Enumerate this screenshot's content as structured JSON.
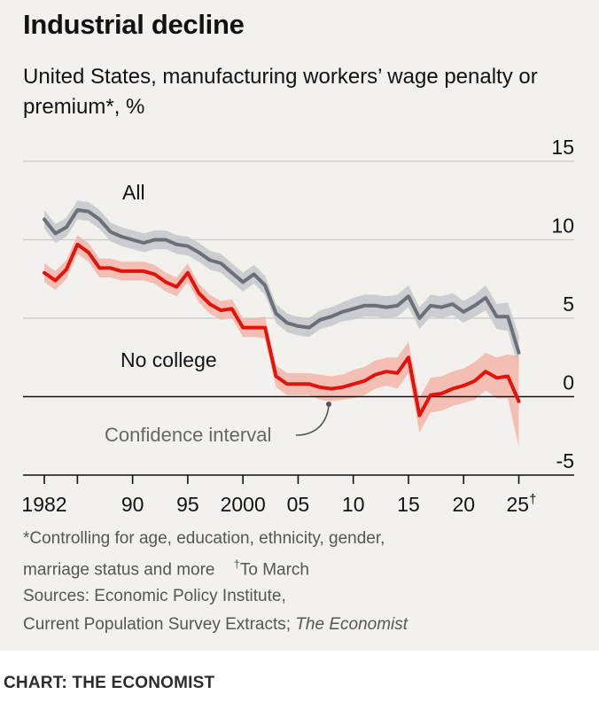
{
  "title": "Industrial decline",
  "subtitle": "United States, manufacturing workers’ wage penalty or premium*, %",
  "credit": "CHART: THE ECONOMIST",
  "footnotes": {
    "line1": "*Controlling for age, education, ethnicity, gender,",
    "line2": "marriage status and more",
    "dagger_mark": "†",
    "dagger_text": "To March",
    "line3": "Sources: Economic Policy Institute,",
    "line4_prefix": "Current Population Survey Extracts; ",
    "line4_italic": "The Economist"
  },
  "colors": {
    "all": "#6c6f78",
    "all_band": "#c8c9cc",
    "no_college": "#e3120b",
    "no_college_band": "#f3b9ad",
    "zero_line": "#121212",
    "grid": "#c9c9c9"
  },
  "chart_data": {
    "type": "line",
    "xlim": [
      1982,
      2025.2
    ],
    "ylim": [
      -5,
      15
    ],
    "yticks": [
      15,
      10,
      5,
      0,
      -5
    ],
    "ytick_labels": [
      "15",
      "10",
      "5",
      "0",
      "-5"
    ],
    "xticks": [
      1982,
      1985,
      1990,
      1995,
      2000,
      2005,
      2010,
      2015,
      2020,
      2025
    ],
    "xtick_labels": [
      {
        "x": 1982,
        "label": "1982"
      },
      {
        "x": 1990,
        "label": "90"
      },
      {
        "x": 1995,
        "label": "95"
      },
      {
        "x": 2000,
        "label": "2000"
      },
      {
        "x": 2005,
        "label": "05"
      },
      {
        "x": 2010,
        "label": "10"
      },
      {
        "x": 2015,
        "label": "15"
      },
      {
        "x": 2020,
        "label": "20"
      },
      {
        "x": 2025,
        "label": "25",
        "suffix": "†"
      }
    ],
    "grid": true,
    "legend": "inline labels",
    "annotation": "Confidence interval",
    "x": [
      1982,
      1983,
      1984,
      1985,
      1986,
      1987,
      1988,
      1989,
      1990,
      1991,
      1992,
      1993,
      1994,
      1995,
      1996,
      1997,
      1998,
      1999,
      2000,
      2001,
      2002,
      2003,
      2004,
      2005,
      2006,
      2007,
      2008,
      2009,
      2010,
      2011,
      2012,
      2013,
      2014,
      2015,
      2016,
      2017,
      2018,
      2019,
      2020,
      2021,
      2022,
      2023,
      2024,
      2025
    ],
    "series": [
      {
        "name": "All",
        "values": [
          11.3,
          10.4,
          10.8,
          11.9,
          11.8,
          11.3,
          10.5,
          10.2,
          10.0,
          9.8,
          10.0,
          10.0,
          9.7,
          9.6,
          9.2,
          8.7,
          8.5,
          7.9,
          7.3,
          7.8,
          7.1,
          5.3,
          4.7,
          4.5,
          4.4,
          4.9,
          5.1,
          5.4,
          5.6,
          5.8,
          5.8,
          5.7,
          5.8,
          6.4,
          5.0,
          5.8,
          5.7,
          5.9,
          5.4,
          5.8,
          6.3,
          5.1,
          5.1,
          2.8
        ],
        "band": [
          0.6,
          0.6,
          0.6,
          0.6,
          0.6,
          0.6,
          0.6,
          0.6,
          0.6,
          0.6,
          0.6,
          0.6,
          0.6,
          0.6,
          0.6,
          0.6,
          0.6,
          0.6,
          0.6,
          0.6,
          0.6,
          0.6,
          0.6,
          0.6,
          0.6,
          0.6,
          0.6,
          0.6,
          0.7,
          0.7,
          0.7,
          0.7,
          0.7,
          0.7,
          0.7,
          0.7,
          0.7,
          0.7,
          0.7,
          0.7,
          0.8,
          0.8,
          0.9,
          1.1
        ]
      },
      {
        "name": "No college",
        "values": [
          7.9,
          7.4,
          8.1,
          9.7,
          9.2,
          8.2,
          8.2,
          8.0,
          8.0,
          8.0,
          7.8,
          7.3,
          7.0,
          7.9,
          6.6,
          5.9,
          5.5,
          5.6,
          4.4,
          4.4,
          4.4,
          1.3,
          0.8,
          0.8,
          0.8,
          0.6,
          0.5,
          0.6,
          0.8,
          1.0,
          1.4,
          1.6,
          1.5,
          2.5,
          -1.2,
          0.1,
          0.2,
          0.5,
          0.7,
          1.0,
          1.6,
          1.2,
          1.3,
          -0.3
        ],
        "band": [
          0.6,
          0.6,
          0.6,
          0.6,
          0.6,
          0.6,
          0.6,
          0.6,
          0.6,
          0.6,
          0.6,
          0.6,
          0.6,
          0.6,
          0.6,
          0.6,
          0.6,
          0.6,
          0.6,
          0.6,
          0.7,
          0.7,
          0.7,
          0.7,
          0.7,
          0.8,
          0.8,
          0.8,
          0.9,
          0.9,
          0.9,
          0.9,
          1.0,
          1.0,
          1.1,
          1.1,
          1.1,
          1.1,
          1.1,
          1.2,
          1.2,
          1.3,
          1.4,
          2.9
        ]
      }
    ]
  }
}
